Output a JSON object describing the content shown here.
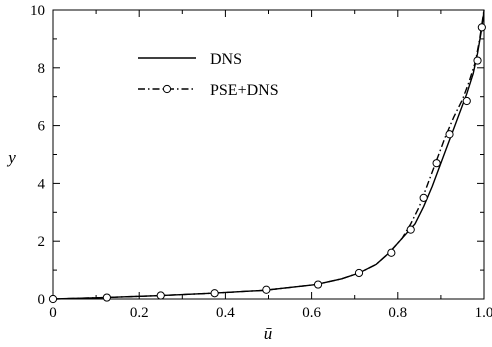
{
  "chart_data": {
    "type": "line",
    "title": "",
    "xlabel": "ū",
    "ylabel": "y",
    "xlim": [
      0,
      1.0
    ],
    "ylim": [
      0,
      10
    ],
    "xticks": [
      0,
      0.2,
      0.4,
      0.6,
      0.8,
      1.0
    ],
    "xtick_labels": [
      "0",
      "0.2",
      "0.4",
      "0.6",
      "0.8",
      "1.0"
    ],
    "yticks": [
      0,
      2,
      4,
      6,
      8,
      10
    ],
    "ytick_labels": [
      "0",
      "2",
      "4",
      "6",
      "8",
      "10"
    ],
    "grid": false,
    "legend_position": "upper-left",
    "series": [
      {
        "name": "DNS",
        "style": "solid",
        "color": "#000000",
        "x": [
          0,
          0.12,
          0.25,
          0.37,
          0.49,
          0.61,
          0.67,
          0.71,
          0.75,
          0.78,
          0.81,
          0.84,
          0.86,
          0.88,
          0.9,
          0.92,
          0.94,
          0.96,
          0.975,
          0.985,
          0.993,
          0.998,
          1.0
        ],
        "y": [
          0,
          0.05,
          0.12,
          0.2,
          0.3,
          0.5,
          0.7,
          0.9,
          1.2,
          1.6,
          2.1,
          2.6,
          3.2,
          3.9,
          4.7,
          5.5,
          6.3,
          7.1,
          7.8,
          8.5,
          9.2,
          9.7,
          10
        ]
      },
      {
        "name": "PSE+DNS",
        "style": "dash-dot",
        "color": "#000000",
        "marker": "circle",
        "x": [
          0,
          0.12,
          0.25,
          0.37,
          0.49,
          0.61,
          0.67,
          0.71,
          0.75,
          0.78,
          0.81,
          0.83,
          0.85,
          0.87,
          0.89,
          0.91,
          0.93,
          0.95,
          0.965,
          0.98,
          0.99,
          1.0
        ],
        "y": [
          0,
          0.05,
          0.12,
          0.2,
          0.3,
          0.5,
          0.7,
          0.9,
          1.2,
          1.6,
          2.1,
          2.6,
          3.2,
          4.0,
          4.8,
          5.6,
          6.3,
          6.9,
          7.5,
          8.2,
          9.0,
          10
        ],
        "marker_x": [
          0,
          0.125,
          0.25,
          0.375,
          0.495,
          0.615,
          0.71,
          0.785,
          0.83,
          0.86,
          0.89,
          0.92,
          0.96,
          0.985,
          0.995
        ],
        "marker_y": [
          0,
          0.05,
          0.12,
          0.2,
          0.32,
          0.5,
          0.9,
          1.6,
          2.4,
          3.5,
          4.7,
          5.7,
          6.85,
          8.25,
          9.4
        ]
      }
    ]
  }
}
